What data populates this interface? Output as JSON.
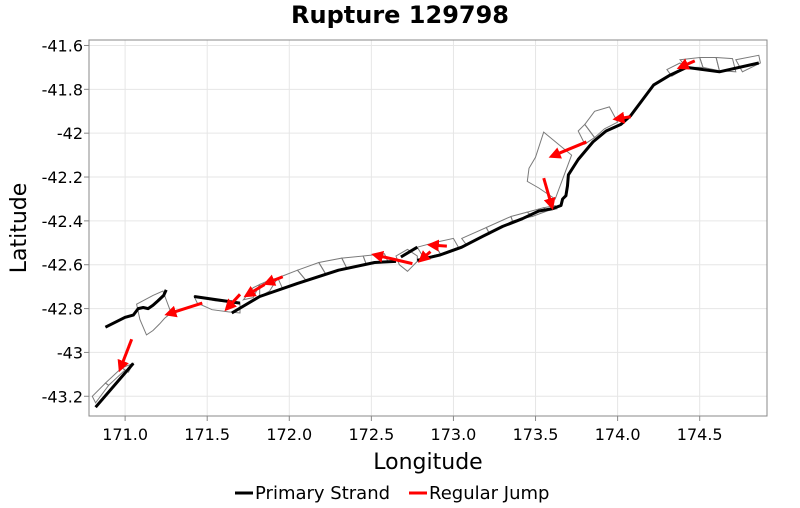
{
  "chart_data": {
    "type": "line",
    "title": "Rupture 129798",
    "xlabel": "Longitude",
    "ylabel": "Latitude",
    "xlim": [
      170.78,
      174.91
    ],
    "ylim": [
      -43.29,
      -41.575
    ],
    "x_ticks": [
      171.0,
      171.5,
      172.0,
      172.5,
      173.0,
      173.5,
      174.0,
      174.5
    ],
    "x_tick_labels": [
      "171.0",
      "171.5",
      "172.0",
      "172.5",
      "173.0",
      "173.5",
      "174.0",
      "174.5"
    ],
    "y_ticks": [
      -41.6,
      -41.8,
      -42.0,
      -42.2,
      -42.4,
      -42.6,
      -42.8,
      -43.0,
      -43.2
    ],
    "y_tick_labels": [
      "-41.6",
      "-41.8",
      "-42",
      "-42.2",
      "-42.4",
      "-42.6",
      "-42.8",
      "-43",
      "-43.2"
    ],
    "grid": true,
    "legend_position": "bottom",
    "colors": {
      "primary_strand": "#000000",
      "regular_jump": "#ff0000",
      "fault_outline": "#7a7a7a",
      "grid": "#e6e6e6",
      "frame": "#888888"
    },
    "series": [
      {
        "name": "Primary Strand",
        "style": "line",
        "segments": [
          [
            [
              170.82,
              -43.25
            ],
            [
              171.05,
              -43.05
            ]
          ],
          [
            [
              170.88,
              -42.885
            ],
            [
              171.0,
              -42.84
            ],
            [
              171.05,
              -42.83
            ],
            [
              171.08,
              -42.8
            ],
            [
              171.11,
              -42.795
            ],
            [
              171.14,
              -42.8
            ],
            [
              171.17,
              -42.785
            ],
            [
              171.2,
              -42.765
            ],
            [
              171.235,
              -42.74
            ],
            [
              171.25,
              -42.715
            ]
          ],
          [
            [
              171.42,
              -42.745
            ],
            [
              171.7,
              -42.775
            ]
          ],
          [
            [
              171.65,
              -42.82
            ],
            [
              171.82,
              -42.745
            ],
            [
              172.05,
              -42.685
            ],
            [
              172.3,
              -42.625
            ],
            [
              172.52,
              -42.59
            ],
            [
              172.65,
              -42.585
            ]
          ],
          [
            [
              172.68,
              -42.565
            ],
            [
              172.78,
              -42.52
            ]
          ],
          [
            [
              172.78,
              -42.58
            ],
            [
              172.92,
              -42.555
            ],
            [
              173.05,
              -42.52
            ],
            [
              173.18,
              -42.47
            ],
            [
              173.3,
              -42.425
            ],
            [
              173.42,
              -42.39
            ],
            [
              173.52,
              -42.355
            ],
            [
              173.6,
              -42.345
            ],
            [
              173.655,
              -42.33
            ],
            [
              173.665,
              -42.3
            ],
            [
              173.685,
              -42.285
            ],
            [
              173.695,
              -42.24
            ],
            [
              173.7,
              -42.19
            ],
            [
              173.76,
              -42.12
            ],
            [
              173.85,
              -42.04
            ],
            [
              173.93,
              -41.99
            ],
            [
              174.02,
              -41.96
            ],
            [
              174.08,
              -41.92
            ],
            [
              174.22,
              -41.78
            ],
            [
              174.32,
              -41.735
            ],
            [
              174.42,
              -41.7
            ],
            [
              174.62,
              -41.72
            ],
            [
              174.86,
              -41.68
            ]
          ]
        ]
      },
      {
        "name": "Regular Jump",
        "style": "arrow",
        "arrows": [
          [
            [
              171.04,
              -42.94
            ],
            [
              170.97,
              -43.075
            ]
          ],
          [
            [
              171.47,
              -42.775
            ],
            [
              171.26,
              -42.825
            ]
          ],
          [
            [
              171.7,
              -42.735
            ],
            [
              171.62,
              -42.8
            ]
          ],
          [
            [
              171.85,
              -42.69
            ],
            [
              171.74,
              -42.74
            ]
          ],
          [
            [
              171.96,
              -42.655
            ],
            [
              171.86,
              -42.685
            ]
          ],
          [
            [
              172.75,
              -42.595
            ],
            [
              172.52,
              -42.555
            ]
          ],
          [
            [
              172.86,
              -42.54
            ],
            [
              172.8,
              -42.58
            ]
          ],
          [
            [
              172.96,
              -42.515
            ],
            [
              172.86,
              -42.51
            ]
          ],
          [
            [
              173.55,
              -42.205
            ],
            [
              173.6,
              -42.335
            ]
          ],
          [
            [
              173.81,
              -42.04
            ],
            [
              173.6,
              -42.105
            ]
          ],
          [
            [
              174.08,
              -41.925
            ],
            [
              173.99,
              -41.935
            ]
          ],
          [
            [
              174.47,
              -41.67
            ],
            [
              174.38,
              -41.7
            ]
          ]
        ]
      }
    ],
    "fault_sections": [
      [
        [
          170.8,
          -43.2
        ],
        [
          170.88,
          -43.14
        ],
        [
          170.9,
          -43.15
        ],
        [
          170.84,
          -43.21
        ],
        [
          170.82,
          -43.23
        ]
      ],
      [
        [
          170.88,
          -43.14
        ],
        [
          170.98,
          -43.07
        ],
        [
          171.0,
          -43.08
        ],
        [
          170.9,
          -43.15
        ]
      ],
      [
        [
          170.98,
          -43.07
        ],
        [
          171.05,
          -43.05
        ],
        [
          171.02,
          -43.09
        ],
        [
          171.0,
          -43.08
        ]
      ],
      [
        [
          171.07,
          -42.78
        ],
        [
          171.12,
          -42.76
        ],
        [
          171.17,
          -42.74
        ],
        [
          171.23,
          -42.72
        ],
        [
          171.28,
          -42.82
        ],
        [
          171.24,
          -42.845
        ],
        [
          171.21,
          -42.87
        ],
        [
          171.17,
          -42.9
        ],
        [
          171.13,
          -42.92
        ],
        [
          171.09,
          -42.85
        ]
      ],
      [
        [
          171.42,
          -42.745
        ],
        [
          171.55,
          -42.765
        ],
        [
          171.7,
          -42.775
        ],
        [
          171.7,
          -42.82
        ],
        [
          171.63,
          -42.815
        ],
        [
          171.53,
          -42.805
        ],
        [
          171.44,
          -42.775
        ]
      ],
      [
        [
          171.72,
          -42.76
        ],
        [
          171.78,
          -42.705
        ],
        [
          171.82,
          -42.69
        ],
        [
          171.78,
          -42.75
        ]
      ],
      [
        [
          171.82,
          -42.69
        ],
        [
          171.88,
          -42.67
        ],
        [
          171.93,
          -42.66
        ],
        [
          171.88,
          -42.72
        ],
        [
          171.82,
          -42.745
        ]
      ],
      [
        [
          171.93,
          -42.66
        ],
        [
          172.05,
          -42.625
        ],
        [
          172.1,
          -42.67
        ],
        [
          172.05,
          -42.685
        ],
        [
          171.96,
          -42.71
        ]
      ],
      [
        [
          172.05,
          -42.625
        ],
        [
          172.18,
          -42.59
        ],
        [
          172.22,
          -42.64
        ],
        [
          172.1,
          -42.67
        ]
      ],
      [
        [
          172.18,
          -42.59
        ],
        [
          172.32,
          -42.57
        ],
        [
          172.35,
          -42.615
        ],
        [
          172.22,
          -42.64
        ]
      ],
      [
        [
          172.32,
          -42.57
        ],
        [
          172.45,
          -42.56
        ],
        [
          172.47,
          -42.6
        ],
        [
          172.35,
          -42.615
        ]
      ],
      [
        [
          172.45,
          -42.56
        ],
        [
          172.58,
          -42.55
        ],
        [
          172.6,
          -42.585
        ],
        [
          172.47,
          -42.6
        ]
      ],
      [
        [
          172.65,
          -42.56
        ],
        [
          172.72,
          -42.53
        ],
        [
          172.78,
          -42.56
        ],
        [
          172.78,
          -42.585
        ],
        [
          172.72,
          -42.63
        ],
        [
          172.67,
          -42.6
        ]
      ],
      [
        [
          172.78,
          -42.52
        ],
        [
          172.88,
          -42.5
        ],
        [
          172.92,
          -42.55
        ],
        [
          172.82,
          -42.57
        ]
      ],
      [
        [
          172.88,
          -42.5
        ],
        [
          173.0,
          -42.48
        ],
        [
          173.03,
          -42.52
        ],
        [
          172.92,
          -42.55
        ]
      ],
      [
        [
          173.05,
          -42.48
        ],
        [
          173.2,
          -42.43
        ],
        [
          173.22,
          -42.46
        ],
        [
          173.08,
          -42.51
        ]
      ],
      [
        [
          173.2,
          -42.43
        ],
        [
          173.35,
          -42.38
        ],
        [
          173.36,
          -42.4
        ],
        [
          173.22,
          -42.46
        ]
      ],
      [
        [
          173.35,
          -42.38
        ],
        [
          173.45,
          -42.36
        ],
        [
          173.48,
          -42.38
        ],
        [
          173.36,
          -42.4
        ]
      ],
      [
        [
          173.45,
          -42.36
        ],
        [
          173.55,
          -42.34
        ],
        [
          173.57,
          -42.355
        ],
        [
          173.48,
          -42.38
        ]
      ],
      [
        [
          173.55,
          -42.34
        ],
        [
          173.62,
          -42.33
        ],
        [
          173.63,
          -42.345
        ],
        [
          173.57,
          -42.355
        ]
      ],
      [
        [
          173.55,
          -41.995
        ],
        [
          173.72,
          -42.1
        ],
        [
          173.62,
          -42.3
        ],
        [
          173.52,
          -42.25
        ],
        [
          173.45,
          -42.22
        ],
        [
          173.46,
          -42.16
        ],
        [
          173.5,
          -42.11
        ]
      ],
      [
        [
          173.76,
          -41.99
        ],
        [
          173.8,
          -41.96
        ],
        [
          173.86,
          -42.02
        ],
        [
          173.8,
          -42.05
        ]
      ],
      [
        [
          173.8,
          -41.96
        ],
        [
          173.86,
          -41.9
        ],
        [
          173.95,
          -41.88
        ],
        [
          174.0,
          -41.95
        ],
        [
          173.92,
          -41.98
        ],
        [
          173.86,
          -42.02
        ]
      ],
      [
        [
          174.3,
          -41.71
        ],
        [
          174.38,
          -41.68
        ],
        [
          174.42,
          -41.7
        ],
        [
          174.33,
          -41.74
        ]
      ],
      [
        [
          174.38,
          -41.665
        ],
        [
          174.5,
          -41.655
        ],
        [
          174.52,
          -41.7
        ],
        [
          174.42,
          -41.7
        ]
      ],
      [
        [
          174.5,
          -41.655
        ],
        [
          174.6,
          -41.655
        ],
        [
          174.62,
          -41.715
        ],
        [
          174.52,
          -41.7
        ]
      ],
      [
        [
          174.6,
          -41.655
        ],
        [
          174.7,
          -41.66
        ],
        [
          174.72,
          -41.72
        ],
        [
          174.62,
          -41.715
        ]
      ],
      [
        [
          174.72,
          -41.665
        ],
        [
          174.86,
          -41.645
        ],
        [
          174.87,
          -41.68
        ],
        [
          174.76,
          -41.72
        ]
      ]
    ]
  },
  "legend": {
    "primary_label": "Primary Strand",
    "jump_label": "Regular Jump"
  }
}
